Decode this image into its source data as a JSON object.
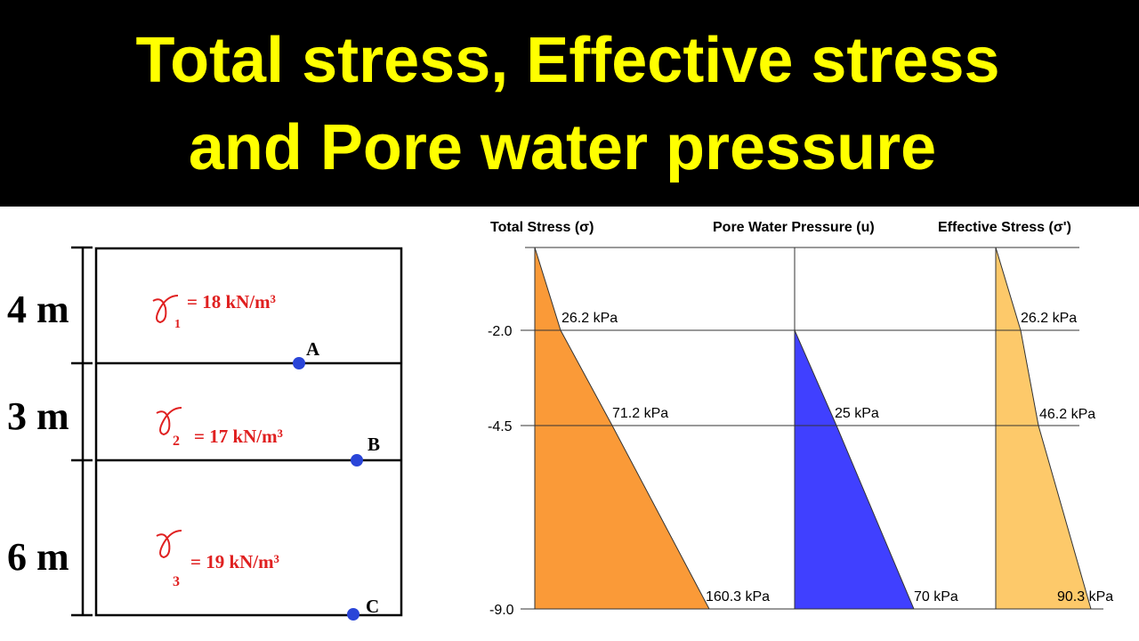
{
  "header": {
    "title_lines": [
      "Total  stress, Effective  stress",
      "and  Pore  water  pressure"
    ]
  },
  "soil_profile": {
    "layers": [
      {
        "thickness": "4 m",
        "unit_weight": "= 18 kN/m³",
        "symbol_subscript": "1"
      },
      {
        "thickness": "3 m",
        "unit_weight": "= 17 kN/m³",
        "symbol_subscript": "2"
      },
      {
        "thickness": "6 m",
        "unit_weight": "= 19 kN/m³",
        "symbol_subscript": "3"
      }
    ],
    "points": [
      "A",
      "B",
      "C"
    ]
  },
  "stress_diagrams": {
    "depth_labels": [
      "-2.0",
      "-4.5",
      "-9.0"
    ],
    "columns": [
      {
        "heading": "Total Stress (σ)",
        "labels": [
          "26.2 kPa",
          "71.2 kPa",
          "160.3 kPa"
        ]
      },
      {
        "heading": "Pore Water Pressure (u)",
        "labels": [
          "25 kPa",
          "70 kPa"
        ]
      },
      {
        "heading": "Effective Stress (σ')",
        "labels": [
          "26.2 kPa",
          "46.2 kPa",
          "90.3 kPa"
        ]
      }
    ]
  }
}
